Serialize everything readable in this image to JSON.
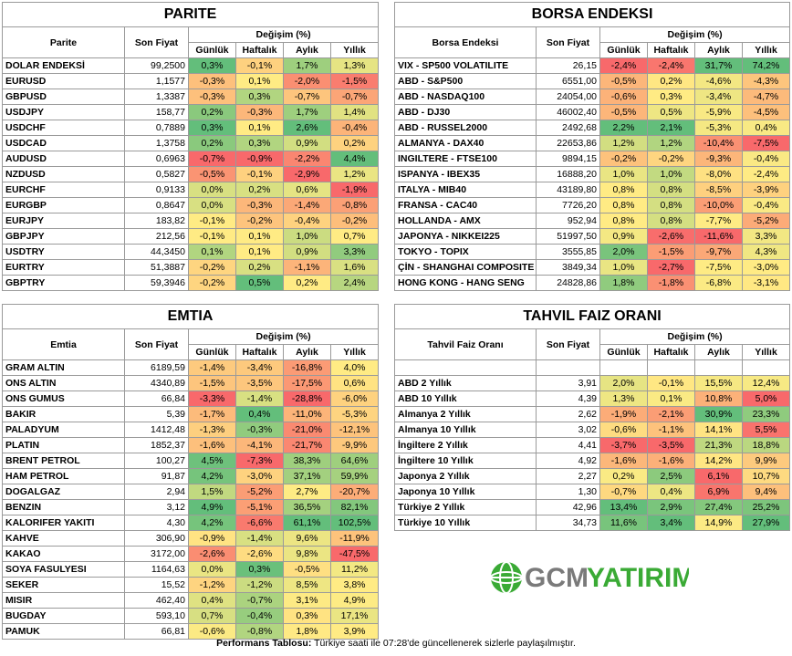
{
  "tables": [
    {
      "title": "PARITE",
      "name_header": "Parite",
      "price_header": "Son Fiyat",
      "change_header": "Değişim (%)",
      "period_headers": [
        "Günlük",
        "Haftalık",
        "Aylık",
        "Yıllık"
      ],
      "rows": [
        [
          "DOLAR ENDEKSİ",
          "99,2500",
          "0,3%",
          "-0,1%",
          "1,7%",
          "1,3%"
        ],
        [
          "EURUSD",
          "1,1577",
          "-0,3%",
          "0,1%",
          "-2,0%",
          "-1,5%"
        ],
        [
          "GBPUSD",
          "1,3387",
          "-0,3%",
          "0,3%",
          "-0,7%",
          "-0,7%"
        ],
        [
          "USDJPY",
          "158,77",
          "0,2%",
          "-0,3%",
          "1,7%",
          "1,4%"
        ],
        [
          "USDCHF",
          "0,7889",
          "0,3%",
          "0,1%",
          "2,6%",
          "-0,4%"
        ],
        [
          "USDCAD",
          "1,3758",
          "0,2%",
          "0,3%",
          "0,9%",
          "0,2%"
        ],
        [
          "AUDUSD",
          "0,6963",
          "-0,7%",
          "-0,9%",
          "-2,2%",
          "4,4%"
        ],
        [
          "NZDUSD",
          "0,5827",
          "-0,5%",
          "-0,1%",
          "-2,9%",
          "1,2%"
        ],
        [
          "EURCHF",
          "0,9133",
          "0,0%",
          "0,2%",
          "0,6%",
          "-1,9%"
        ],
        [
          "EURGBP",
          "0,8647",
          "0,0%",
          "-0,3%",
          "-1,4%",
          "-0,8%"
        ],
        [
          "EURJPY",
          "183,82",
          "-0,1%",
          "-0,2%",
          "-0,4%",
          "-0,2%"
        ],
        [
          "GBPJPY",
          "212,56",
          "-0,1%",
          "0,1%",
          "1,0%",
          "0,7%"
        ],
        [
          "USDTRY",
          "44,3450",
          "0,1%",
          "0,1%",
          "0,9%",
          "3,3%"
        ],
        [
          "EURTRY",
          "51,3887",
          "-0,2%",
          "0,2%",
          "-1,1%",
          "1,6%"
        ],
        [
          "GBPTRY",
          "59,3946",
          "-0,2%",
          "0,5%",
          "0,2%",
          "2,4%"
        ]
      ]
    },
    {
      "title": "BORSA ENDEKSI",
      "name_header": "Borsa Endeksi",
      "price_header": "Son Fiyat",
      "change_header": "Değişim (%)",
      "period_headers": [
        "Günlük",
        "Haftalık",
        "Aylık",
        "Yıllık"
      ],
      "rows": [
        [
          "VIX  - SP500 VOLATILITE",
          "26,15",
          "-2,4%",
          "-2,4%",
          "31,7%",
          "74,2%"
        ],
        [
          "ABD - S&P500",
          "6551,00",
          "-0,5%",
          "0,2%",
          "-4,6%",
          "-4,3%"
        ],
        [
          "ABD - NASDAQ100",
          "24054,00",
          "-0,6%",
          "0,3%",
          "-3,4%",
          "-4,7%"
        ],
        [
          "ABD - DJ30",
          "46002,40",
          "-0,5%",
          "0,5%",
          "-5,9%",
          "-4,5%"
        ],
        [
          "ABD - RUSSEL2000",
          "2492,68",
          "2,2%",
          "2,1%",
          "-5,3%",
          "0,4%"
        ],
        [
          "ALMANYA - DAX40",
          "22653,86",
          "1,2%",
          "1,2%",
          "-10,4%",
          "-7,5%"
        ],
        [
          "INGILTERE - FTSE100",
          "9894,15",
          "-0,2%",
          "-0,2%",
          "-9,3%",
          "-0,4%"
        ],
        [
          "ISPANYA - IBEX35",
          "16888,20",
          "1,0%",
          "1,0%",
          "-8,0%",
          "-2,4%"
        ],
        [
          "ITALYA - MIB40",
          "43189,80",
          "0,8%",
          "0,8%",
          "-8,5%",
          "-3,9%"
        ],
        [
          "FRANSA - CAC40",
          "7726,20",
          "0,8%",
          "0,8%",
          "-10,0%",
          "-0,4%"
        ],
        [
          "HOLLANDA - AMX",
          "952,94",
          "0,8%",
          "0,8%",
          "-7,7%",
          "-5,2%"
        ],
        [
          "JAPONYA - NIKKEI225",
          "51997,50",
          "0,9%",
          "-2,6%",
          "-11,6%",
          "3,3%"
        ],
        [
          "TOKYO - TOPIX",
          "3555,85",
          "2,0%",
          "-1,5%",
          "-9,7%",
          "4,3%"
        ],
        [
          "ÇİN - SHANGHAI COMPOSITE",
          "3849,34",
          "1,0%",
          "-2,7%",
          "-7,5%",
          "-3,0%"
        ],
        [
          "HONG KONG - HANG SENG",
          "24828,86",
          "1,8%",
          "-1,8%",
          "-6,8%",
          "-3,1%"
        ]
      ]
    },
    {
      "title": "EMTIA",
      "name_header": "Emtia",
      "price_header": "Son Fiyat",
      "change_header": "Değişim (%)",
      "period_headers": [
        "Günlük",
        "Haftalık",
        "Aylık",
        "Yıllık"
      ],
      "rows": [
        [
          "GRAM ALTIN",
          "6189,59",
          "-1,4%",
          "-3,4%",
          "-16,8%",
          "4,0%"
        ],
        [
          "ONS ALTIN",
          "4340,89",
          "-1,5%",
          "-3,5%",
          "-17,5%",
          "0,6%"
        ],
        [
          "ONS GUMUS",
          "66,84",
          "-3,3%",
          "-1,4%",
          "-28,8%",
          "-6,0%"
        ],
        [
          "BAKIR",
          "5,39",
          "-1,7%",
          "0,4%",
          "-11,0%",
          "-5,3%"
        ],
        [
          "PALADYUM",
          "1412,48",
          "-1,3%",
          "-0,3%",
          "-21,0%",
          "-12,1%"
        ],
        [
          "PLATIN",
          "1852,37",
          "-1,6%",
          "-4,1%",
          "-21,7%",
          "-9,9%"
        ],
        [
          "BRENT PETROL",
          "100,27",
          "4,5%",
          "-7,3%",
          "38,3%",
          "64,6%"
        ],
        [
          "HAM PETROL",
          "91,87",
          "4,2%",
          "-3,0%",
          "37,1%",
          "59,9%"
        ],
        [
          "DOGALGAZ",
          "2,94",
          "1,5%",
          "-5,2%",
          "2,7%",
          "-20,7%"
        ],
        [
          "BENZIN",
          "3,12",
          "4,9%",
          "-5,1%",
          "36,5%",
          "82,1%"
        ],
        [
          "KALORIFER YAKITI",
          "4,30",
          "4,2%",
          "-6,6%",
          "61,1%",
          "102,5%"
        ],
        [
          "KAHVE",
          "306,90",
          "-0,9%",
          "-1,4%",
          "9,6%",
          "-11,9%"
        ],
        [
          "KAKAO",
          "3172,00",
          "-2,6%",
          "-2,6%",
          "9,8%",
          "-47,5%"
        ],
        [
          "SOYA FASULYESI",
          "1164,63",
          "0,0%",
          "0,3%",
          "-0,5%",
          "11,2%"
        ],
        [
          "SEKER",
          "15,52",
          "-1,2%",
          "-1,2%",
          "8,5%",
          "3,8%"
        ],
        [
          "MISIR",
          "462,40",
          "0,4%",
          "-0,7%",
          "3,1%",
          "4,9%"
        ],
        [
          "BUGDAY",
          "593,10",
          "0,7%",
          "-0,4%",
          "0,3%",
          "17,1%"
        ],
        [
          "PAMUK",
          "66,81",
          "-0,6%",
          "-0,8%",
          "1,8%",
          "3,9%"
        ]
      ]
    },
    {
      "title": "TAHVIL FAIZ ORANI",
      "name_header": "Tahvil Faiz Oranı",
      "price_header": "Son Fiyat",
      "change_header": "Değişim (%)",
      "period_headers": [
        "Günlük",
        "Haftalık",
        "Aylık",
        "Yıllık"
      ],
      "rows": [
        [
          "ABD 2 Yıllık",
          "3,91",
          "2,0%",
          "-0,1%",
          "15,5%",
          "12,4%"
        ],
        [
          "ABD 10 Yıllık",
          "4,39",
          "1,3%",
          "0,1%",
          "10,8%",
          "5,0%"
        ],
        [
          "Almanya 2 Yıllık",
          "2,62",
          "-1,9%",
          "-2,1%",
          "30,9%",
          "23,3%"
        ],
        [
          "Almanya 10 Yıllık",
          "3,02",
          "-0,6%",
          "-1,1%",
          "14,1%",
          "5,5%"
        ],
        [
          "İngiltere 2 Yıllık",
          "4,41",
          "-3,7%",
          "-3,5%",
          "21,3%",
          "18,8%"
        ],
        [
          "İngiltere 10 Yıllık",
          "4,92",
          "-1,6%",
          "-1,6%",
          "14,2%",
          "9,9%"
        ],
        [
          "Japonya 2 Yıllık",
          "2,27",
          "0,2%",
          "2,5%",
          "6,1%",
          "10,7%"
        ],
        [
          "Japonya 10 Yıllık",
          "1,30",
          "-0,7%",
          "0,4%",
          "6,9%",
          "9,4%"
        ],
        [
          "Türkiye 2 Yıllık",
          "42,96",
          "13,4%",
          "2,9%",
          "27,4%",
          "25,2%"
        ],
        [
          "Türkiye 10 Yıllık",
          "34,73",
          "11,6%",
          "3,4%",
          "14,9%",
          "27,9%"
        ]
      ]
    }
  ],
  "logo": {
    "first": "GCM",
    "second": "YATIRIM"
  },
  "footer": {
    "label": "Performans Tablosu:",
    "text": " Türkiye saati ile 07:28'de güncellenerek sizlerle paylaşılmıştır."
  }
}
